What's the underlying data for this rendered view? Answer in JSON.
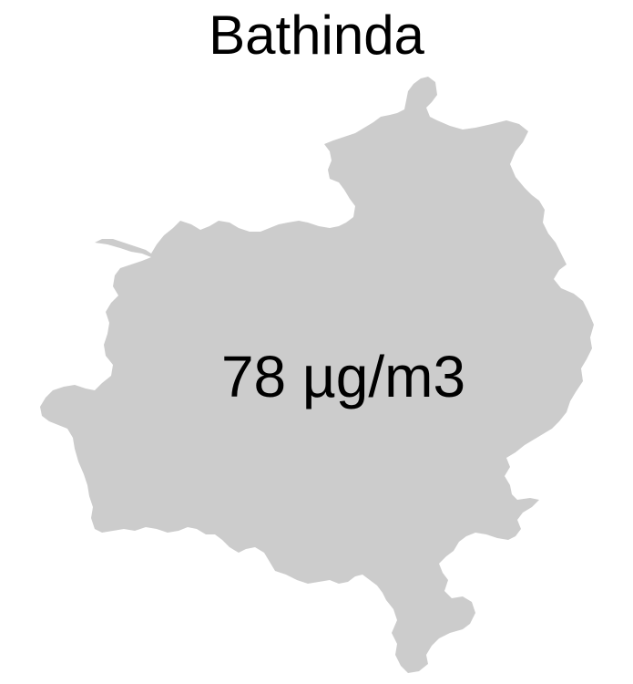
{
  "map": {
    "title": "Bathinda",
    "region_fill": "#cccccc",
    "value_label": "78 µg/m3"
  }
}
